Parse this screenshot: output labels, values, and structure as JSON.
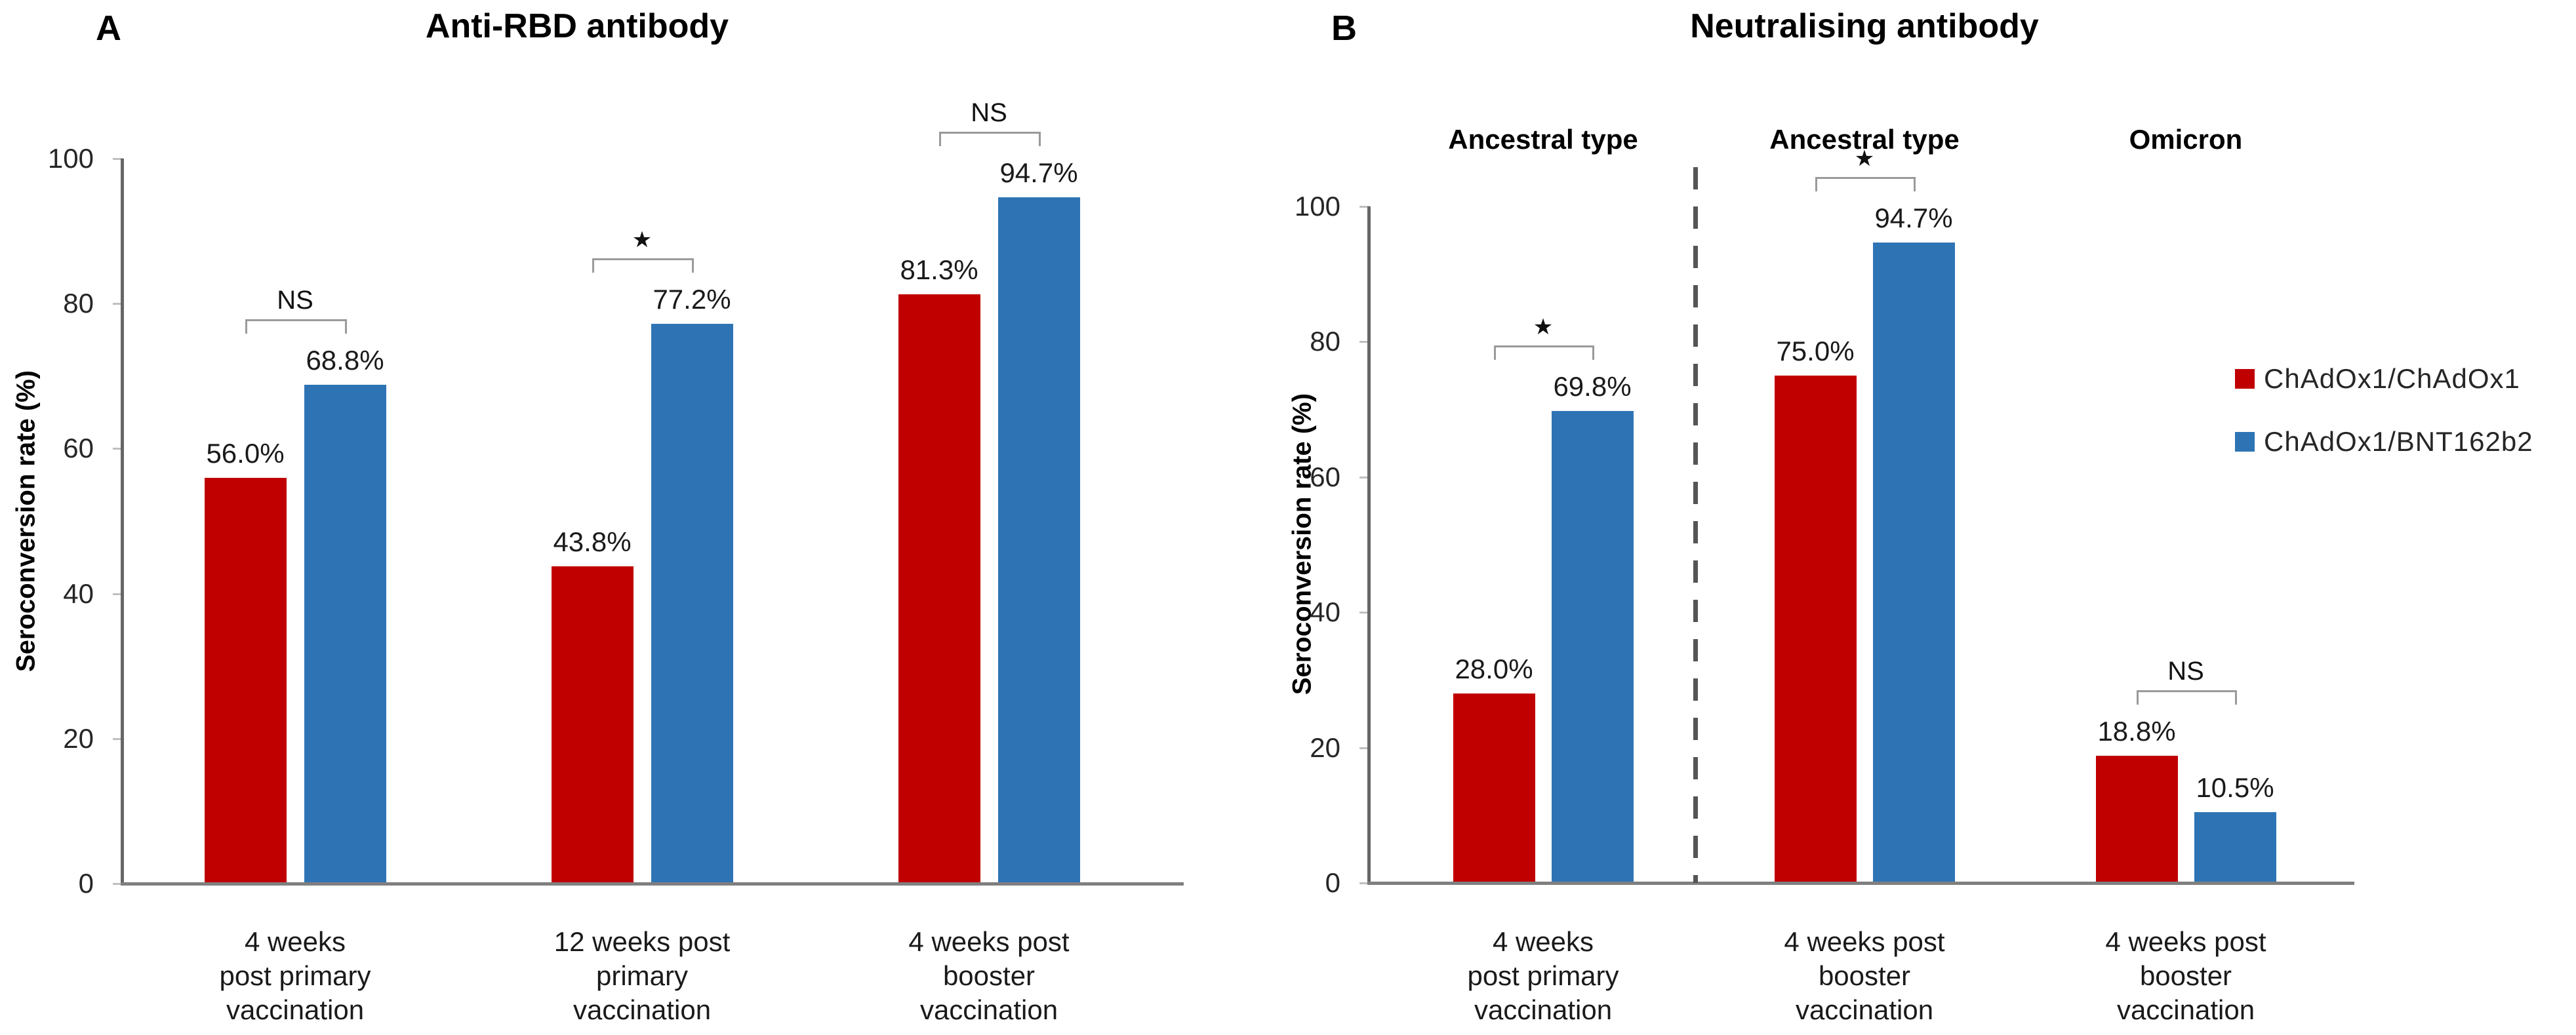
{
  "figure": {
    "colors": {
      "red": "#C00000",
      "blue": "#2E74B5",
      "axis": "#666666",
      "baseline": "#7f7f7f",
      "tick": "#bfbfbf",
      "bracket": "#9a9a9a",
      "divider": "#555555"
    },
    "legend": [
      {
        "label": "ChAdOx1/ChAdOx1",
        "color": "#C00000"
      },
      {
        "label": "ChAdOx1/BNT162b2",
        "color": "#2E74B5"
      }
    ],
    "panels": [
      {
        "id": "A",
        "label": "A",
        "title": "Anti-RBD antibody",
        "y_axis": {
          "label": "Seroconversion rate (%)",
          "ticks": [
            0,
            20,
            40,
            60,
            80,
            100
          ],
          "max": 100
        },
        "groups": [
          {
            "category_lines": [
              "4 weeks",
              "post primary",
              "vaccination"
            ],
            "significance": "NS",
            "bars": [
              {
                "series": "ChAdOx1/ChAdOx1",
                "value": 56.0,
                "label": "56.0%"
              },
              {
                "series": "ChAdOx1/BNT162b2",
                "value": 68.8,
                "label": "68.8%"
              }
            ]
          },
          {
            "category_lines": [
              "12 weeks post",
              "primary",
              "vaccination"
            ],
            "significance": "*",
            "bars": [
              {
                "series": "ChAdOx1/ChAdOx1",
                "value": 43.8,
                "label": "43.8%"
              },
              {
                "series": "ChAdOx1/BNT162b2",
                "value": 77.2,
                "label": "77.2%"
              }
            ]
          },
          {
            "category_lines": [
              "4 weeks post",
              "booster",
              "vaccination"
            ],
            "significance": "NS",
            "bars": [
              {
                "series": "ChAdOx1/ChAdOx1",
                "value": 81.3,
                "label": "81.3%"
              },
              {
                "series": "ChAdOx1/BNT162b2",
                "value": 94.7,
                "label": "94.7%"
              }
            ]
          }
        ]
      },
      {
        "id": "B",
        "label": "B",
        "title": "Neutralising antibody",
        "y_axis": {
          "label": "Seroconversion rate (%)",
          "ticks": [
            0,
            20,
            40,
            60,
            80,
            100
          ],
          "max": 100
        },
        "groups": [
          {
            "header": "Ancestral type",
            "category_lines": [
              "4 weeks",
              "post primary",
              "vaccination"
            ],
            "significance": "*",
            "bars": [
              {
                "series": "ChAdOx1/ChAdOx1",
                "value": 28.0,
                "label": "28.0%"
              },
              {
                "series": "ChAdOx1/BNT162b2",
                "value": 69.8,
                "label": "69.8%"
              }
            ]
          },
          {
            "header": "Ancestral type",
            "category_lines": [
              "4 weeks post",
              "booster",
              "vaccination"
            ],
            "significance": "*",
            "bars": [
              {
                "series": "ChAdOx1/ChAdOx1",
                "value": 75.0,
                "label": "75.0%"
              },
              {
                "series": "ChAdOx1/BNT162b2",
                "value": 94.7,
                "label": "94.7%"
              }
            ]
          },
          {
            "header": "Omicron",
            "category_lines": [
              "4 weeks post",
              "booster",
              "vaccination"
            ],
            "significance": "NS",
            "bars": [
              {
                "series": "ChAdOx1/ChAdOx1",
                "value": 18.8,
                "label": "18.8%"
              },
              {
                "series": "ChAdOx1/BNT162b2",
                "value": 10.5,
                "label": "10.5%"
              }
            ]
          }
        ],
        "divider_after_group": 1
      }
    ]
  },
  "chart_data": [
    {
      "type": "bar",
      "panel": "A",
      "title": "Anti-RBD antibody",
      "categories": [
        "4 weeks post primary vaccination",
        "12 weeks post primary vaccination",
        "4 weeks post booster vaccination"
      ],
      "series": [
        {
          "name": "ChAdOx1/ChAdOx1",
          "color": "#C00000",
          "values": [
            56.0,
            43.8,
            81.3
          ]
        },
        {
          "name": "ChAdOx1/BNT162b2",
          "color": "#2E74B5",
          "values": [
            68.8,
            77.2,
            94.7
          ]
        }
      ],
      "value_labels": [
        [
          "56.0%",
          "43.8%",
          "81.3%"
        ],
        [
          "68.8%",
          "77.2%",
          "94.7%"
        ]
      ],
      "significance_markers": [
        "NS",
        "*",
        "NS"
      ],
      "xlabel": "",
      "ylabel": "Seroconversion rate (%)",
      "ylim": [
        0,
        100
      ],
      "yticks": [
        0,
        20,
        40,
        60,
        80,
        100
      ],
      "grid": false,
      "legend_position": "none"
    },
    {
      "type": "bar",
      "panel": "B",
      "title": "Neutralising antibody",
      "column_headers": [
        "Ancestral type",
        "Ancestral type",
        "Omicron"
      ],
      "categories": [
        "4 weeks post primary vaccination",
        "4 weeks post booster vaccination",
        "4 weeks post booster vaccination"
      ],
      "series": [
        {
          "name": "ChAdOx1/ChAdOx1",
          "color": "#C00000",
          "values": [
            28.0,
            75.0,
            18.8
          ]
        },
        {
          "name": "ChAdOx1/BNT162b2",
          "color": "#2E74B5",
          "values": [
            69.8,
            94.7,
            10.5
          ]
        }
      ],
      "value_labels": [
        [
          "28.0%",
          "75.0%",
          "18.8%"
        ],
        [
          "69.8%",
          "94.7%",
          "10.5%"
        ]
      ],
      "significance_markers": [
        "*",
        "*",
        "NS"
      ],
      "divider_after_category_index": 1,
      "xlabel": "",
      "ylabel": "Seroconversion rate (%)",
      "ylim": [
        0,
        100
      ],
      "yticks": [
        0,
        20,
        40,
        60,
        80,
        100
      ],
      "grid": false,
      "legend_position": "right"
    }
  ]
}
